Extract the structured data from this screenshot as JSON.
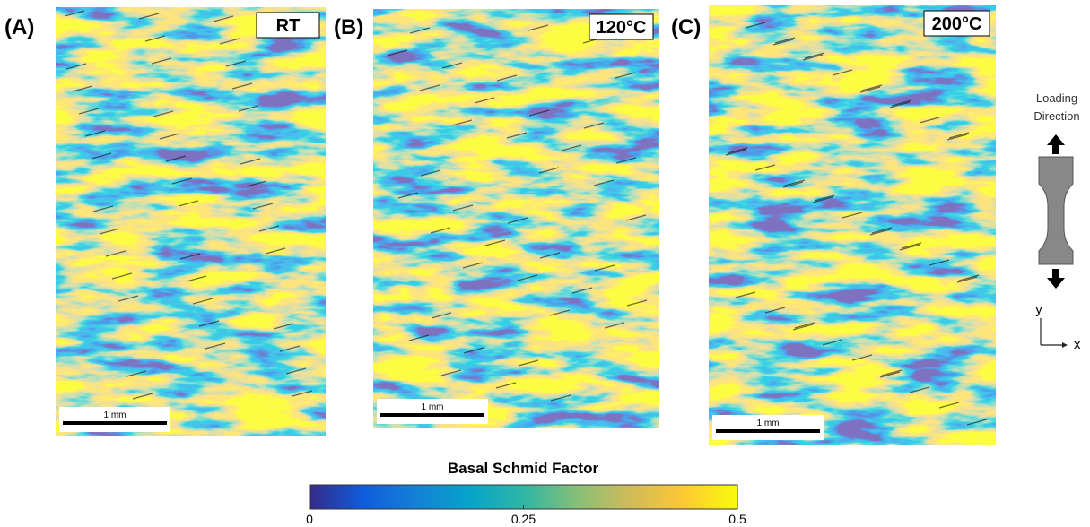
{
  "panels": [
    {
      "label": "(A)",
      "condition": "RT",
      "scale_bar": "1 mm"
    },
    {
      "label": "(B)",
      "condition": "120°C",
      "scale_bar": "1 mm"
    },
    {
      "label": "(C)",
      "condition": "200°C",
      "scale_bar": "1 mm"
    }
  ],
  "loading": {
    "text": "Loading Direction",
    "y_axis": "y",
    "x_axis": "x"
  },
  "colorbar": {
    "title": "Basal Schmid Factor",
    "range": [
      0,
      0.5
    ],
    "ticks": [
      0,
      0.25,
      0.5
    ],
    "colors": [
      "#352a87",
      "#0f5cdd",
      "#1481d6",
      "#06a4ca",
      "#2eb7a4",
      "#87bf77",
      "#d1bb59",
      "#fec832",
      "#f9fb0e"
    ]
  }
}
